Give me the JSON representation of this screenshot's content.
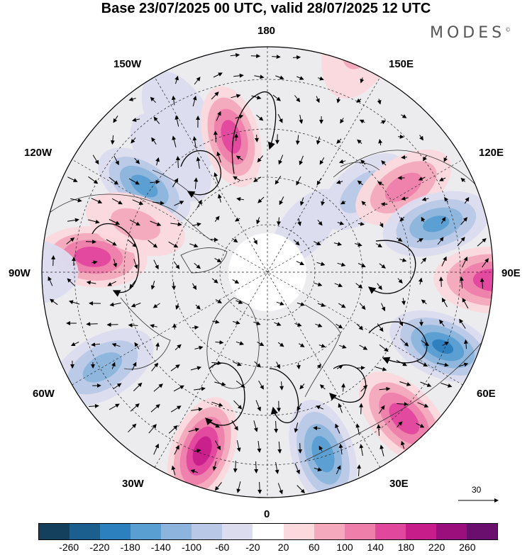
{
  "title": "Base 23/07/2025 00 UTC, valid 28/07/2025 12 UTC",
  "brand": "MODES",
  "brand_mark": "©",
  "longitude_labels": {
    "lon_180": "180",
    "lon_150w": "150W",
    "lon_150e": "150E",
    "lon_120w": "120W",
    "lon_120e": "120E",
    "lon_90w": "90W",
    "lon_90e": "90E",
    "lon_60w": "60W",
    "lon_60e": "60E",
    "lon_30w": "30W",
    "lon_30e": "30E",
    "lon_0": "0"
  },
  "vector_scale": "30",
  "colorbar": {
    "colors": [
      "#14405e",
      "#1a5f8e",
      "#2b80bd",
      "#5a9fd2",
      "#8cb4dc",
      "#b8c8e6",
      "#dcdcef",
      "#ffffff",
      "#fbd9dd",
      "#f4a9bc",
      "#ee7fab",
      "#e2479e",
      "#c71d8a",
      "#9a0f7c",
      "#6b0f6e"
    ],
    "ticks": [
      "-260",
      "-220",
      "-180",
      "-140",
      "-100",
      "-60",
      "-20",
      "20",
      "60",
      "100",
      "140",
      "180",
      "220",
      "260"
    ]
  },
  "anomaly_centers": [
    {
      "lon": -150,
      "lat": 55,
      "value": -30
    },
    {
      "lon": -140,
      "lat": 60,
      "value": -50
    },
    {
      "lon": -125,
      "lat": 60,
      "value": -150
    },
    {
      "lon": -165,
      "lat": 62,
      "value": 160
    },
    {
      "lon": 158,
      "lat": 40,
      "value": 60
    },
    {
      "lon": 130,
      "lat": 65,
      "value": -70
    },
    {
      "lon": 122,
      "lat": 58,
      "value": 110
    },
    {
      "lon": 106,
      "lat": 55,
      "value": -140
    },
    {
      "lon": 88,
      "lat": 45,
      "value": 160
    },
    {
      "lon": 67,
      "lat": 52,
      "value": -180
    },
    {
      "lon": 43,
      "lat": 50,
      "value": 160
    },
    {
      "lon": 17,
      "lat": 52,
      "value": -160
    },
    {
      "lon": -20,
      "lat": 52,
      "value": 200
    },
    {
      "lon": -60,
      "lat": 52,
      "value": -110
    },
    {
      "lon": -95,
      "lat": 55,
      "value": 160
    },
    {
      "lon": -110,
      "lat": 62,
      "value": 60
    },
    {
      "lon": -90,
      "lat": 40,
      "value": -40
    },
    {
      "lon": 140,
      "lat": 78,
      "value": -40
    }
  ]
}
